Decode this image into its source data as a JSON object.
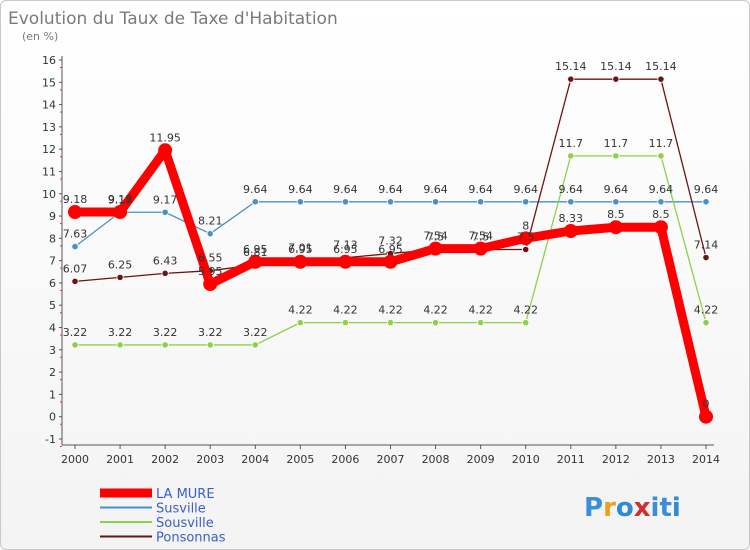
{
  "chart_data": {
    "type": "line",
    "title": "Evolution du Taux de Taxe d'Habitation",
    "subtitle": "(en %)",
    "x": [
      "2000",
      "2001",
      "2002",
      "2003",
      "2004",
      "2005",
      "2006",
      "2007",
      "2008",
      "2009",
      "2010",
      "2011",
      "2012",
      "2013",
      "2014"
    ],
    "ylim": [
      -1,
      16
    ],
    "yticks": [
      -1,
      0,
      1,
      2,
      3,
      4,
      5,
      6,
      7,
      8,
      9,
      10,
      11,
      12,
      13,
      14,
      15,
      16
    ],
    "grid": false,
    "legend_position": "bottom-left",
    "series": [
      {
        "name": "LA MURE",
        "color": "#ff0000",
        "values": [
          9.18,
          9.18,
          11.95,
          5.95,
          6.95,
          6.95,
          6.95,
          6.95,
          7.54,
          7.54,
          8,
          8.33,
          8.5,
          8.5,
          0
        ],
        "labels": [
          "9.18",
          "9.18",
          "11.95",
          "5.95",
          "6.95",
          "6.95",
          "6.95",
          "6.95",
          "7.54",
          "7.54",
          "8",
          "8.33",
          "8.5",
          "8.5",
          "0"
        ]
      },
      {
        "name": "Susville",
        "color": "#4a90c8",
        "values": [
          7.63,
          9.17,
          9.17,
          8.21,
          9.64,
          9.64,
          9.64,
          9.64,
          9.64,
          9.64,
          9.64,
          9.64,
          9.64,
          9.64,
          9.64
        ],
        "labels": [
          "7.63",
          "9.17",
          "9.17",
          "8.21",
          "9.64",
          "9.64",
          "9.64",
          "9.64",
          "9.64",
          "9.64",
          "9.64",
          "9.64",
          "9.64",
          "9.64",
          "9.64"
        ]
      },
      {
        "name": "Sousville",
        "color": "#8dd04a",
        "values": [
          3.22,
          3.22,
          3.22,
          3.22,
          3.22,
          4.22,
          4.22,
          4.22,
          4.22,
          4.22,
          4.22,
          11.7,
          11.7,
          11.7,
          4.22
        ],
        "labels": [
          "3.22",
          "3.22",
          "3.22",
          "3.22",
          "3.22",
          "4.22",
          "4.22",
          "4.22",
          "4.22",
          "4.22",
          "4.22",
          "11.7",
          "11.7",
          "11.7",
          "4.22"
        ]
      },
      {
        "name": "Ponsonnas",
        "color": "#6b1414",
        "values": [
          6.07,
          6.25,
          6.43,
          6.55,
          6.81,
          7.01,
          7.13,
          7.32,
          7.5,
          7.5,
          7.5,
          15.14,
          15.14,
          15.14,
          7.14
        ],
        "labels": [
          "6.07",
          "6.25",
          "6.43",
          "6.55",
          "6.81",
          "7.01",
          "7.13",
          "7.32",
          "7.5",
          "7.5",
          "7.5",
          "15.14",
          "15.14",
          "15.14",
          "7.14"
        ]
      }
    ]
  },
  "logo": {
    "text": "Proxiti"
  }
}
